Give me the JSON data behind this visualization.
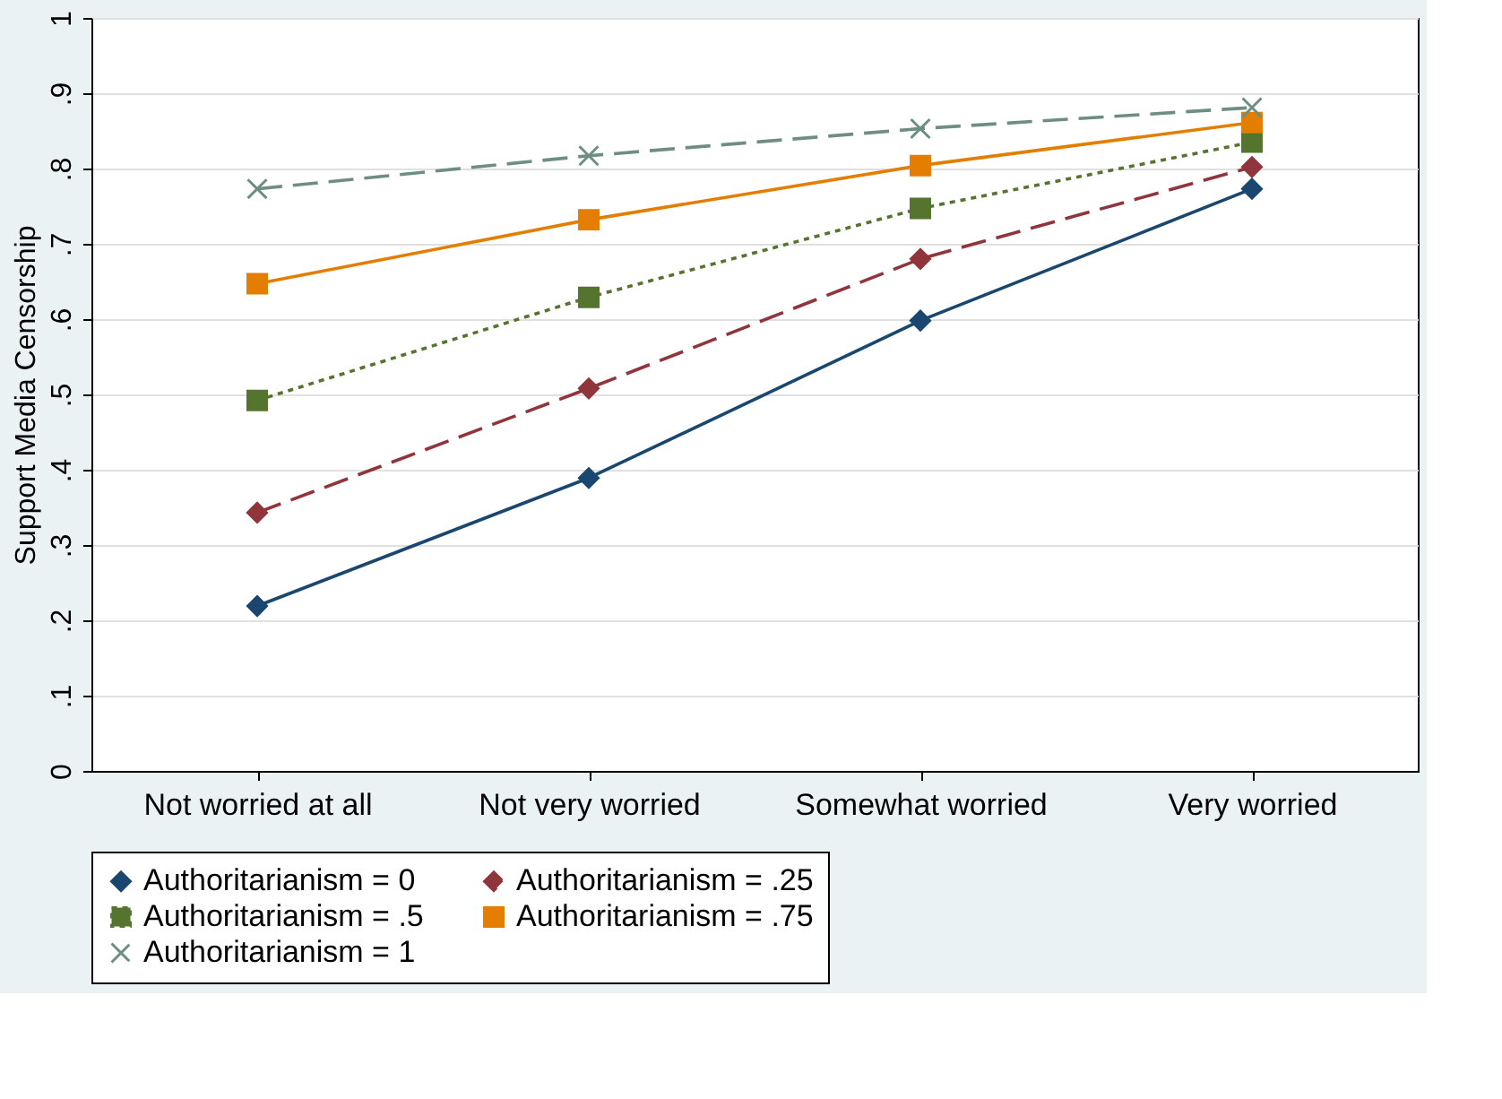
{
  "chart_data": {
    "type": "line",
    "ylabel": "Support Media Censorship",
    "categories": [
      "Not worried at all",
      "Not very worried",
      "Somewhat worried",
      "Very worried"
    ],
    "ylim": [
      0,
      1
    ],
    "yticks": [
      0,
      {
        "value": 0.1,
        "label": ".1"
      },
      {
        "value": 0.2,
        "label": ".2"
      },
      {
        "value": 0.3,
        "label": ".3"
      },
      {
        "value": 0.4,
        "label": ".4"
      },
      {
        "value": 0.5,
        "label": ".5"
      },
      {
        "value": 0.6,
        "label": ".6"
      },
      {
        "value": 0.7,
        "label": ".7"
      },
      {
        "value": 0.8,
        "label": ".8"
      },
      {
        "value": 0.9,
        "label": ".9"
      },
      1
    ],
    "grid": "y",
    "legend": "bottom",
    "series": [
      {
        "name": "Authoritarianism = 0",
        "color": "#1a476f",
        "marker": "diamond",
        "line_style": "solid",
        "values": [
          0.219,
          0.389,
          0.598,
          0.773
        ]
      },
      {
        "name": "Authoritarianism = .25",
        "color": "#90353b",
        "marker": "diamond",
        "line_style": "dashed",
        "values": [
          0.343,
          0.508,
          0.68,
          0.802
        ]
      },
      {
        "name": "Authoritarianism = .5",
        "color": "#55752f",
        "marker": "square",
        "line_style": "dotted",
        "values": [
          0.492,
          0.629,
          0.747,
          0.835
        ]
      },
      {
        "name": "Authoritarianism = .75",
        "color": "#e37e00",
        "marker": "square",
        "line_style": "solid",
        "values": [
          0.647,
          0.732,
          0.804,
          0.861
        ]
      },
      {
        "name": "Authoritarianism = 1",
        "color": "#6e8e84",
        "marker": "cross",
        "line_style": "dashed",
        "values": [
          0.773,
          0.817,
          0.853,
          0.881
        ]
      }
    ]
  }
}
